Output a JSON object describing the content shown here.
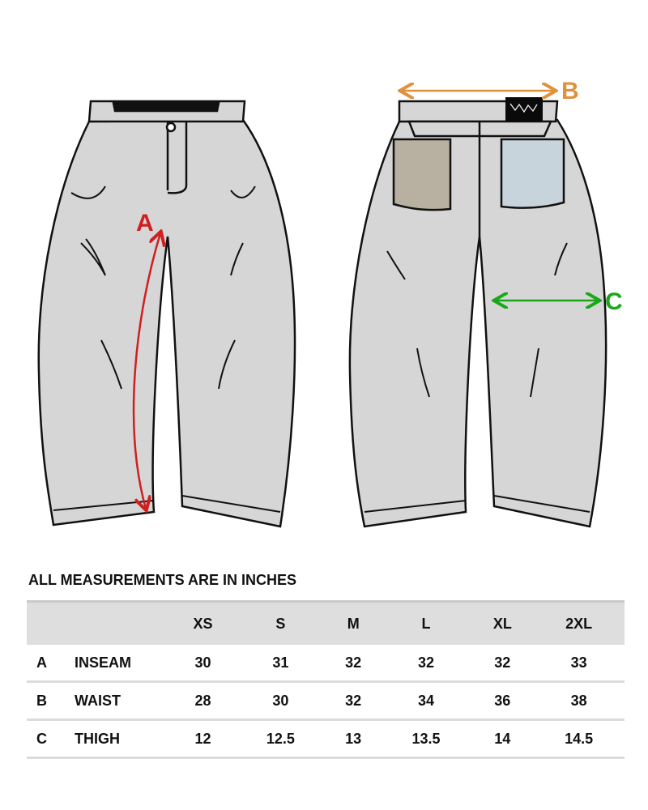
{
  "diagram": {
    "labels": {
      "a": {
        "text": "A",
        "color": "#d01f1f"
      },
      "b": {
        "text": "B",
        "color": "#e0913d"
      },
      "c": {
        "text": "C",
        "color": "#1aa81a"
      }
    },
    "pants_fill": "#d6d6d6"
  },
  "caption": "ALL MEASUREMENTS ARE IN INCHES",
  "table": {
    "sizes": [
      "XS",
      "S",
      "M",
      "L",
      "XL",
      "2XL"
    ],
    "rows": [
      {
        "code": "A",
        "name": "INSEAM",
        "values": [
          "30",
          "31",
          "32",
          "32",
          "32",
          "33"
        ]
      },
      {
        "code": "B",
        "name": "WAIST",
        "values": [
          "28",
          "30",
          "32",
          "34",
          "36",
          "38"
        ]
      },
      {
        "code": "C",
        "name": "THIGH",
        "values": [
          "12",
          "12.5",
          "13",
          "13.5",
          "14",
          "14.5"
        ]
      }
    ]
  }
}
